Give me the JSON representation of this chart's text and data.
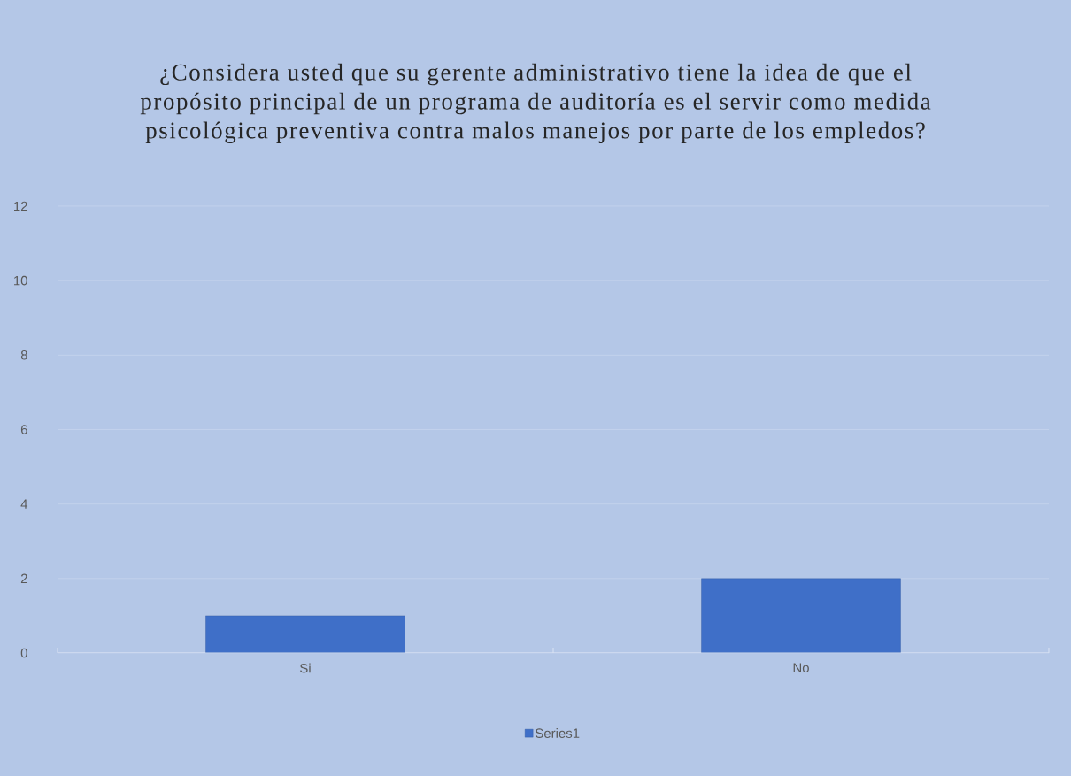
{
  "chart_data": {
    "type": "bar",
    "title": "¿Considera usted que su gerente administrativo tiene la idea de que el propósito principal de un programa de auditoría es el servir como medida psicológica preventiva contra malos manejos por parte de los empledos?",
    "categories": [
      "Si",
      "No"
    ],
    "series": [
      {
        "name": "Series1",
        "color": "#3f6fc8",
        "values": [
          1,
          2
        ]
      }
    ],
    "ylim": [
      0,
      12
    ],
    "yticks": [
      0,
      2,
      4,
      6,
      8,
      10,
      12
    ],
    "grid": "y",
    "legend": "bottom"
  }
}
